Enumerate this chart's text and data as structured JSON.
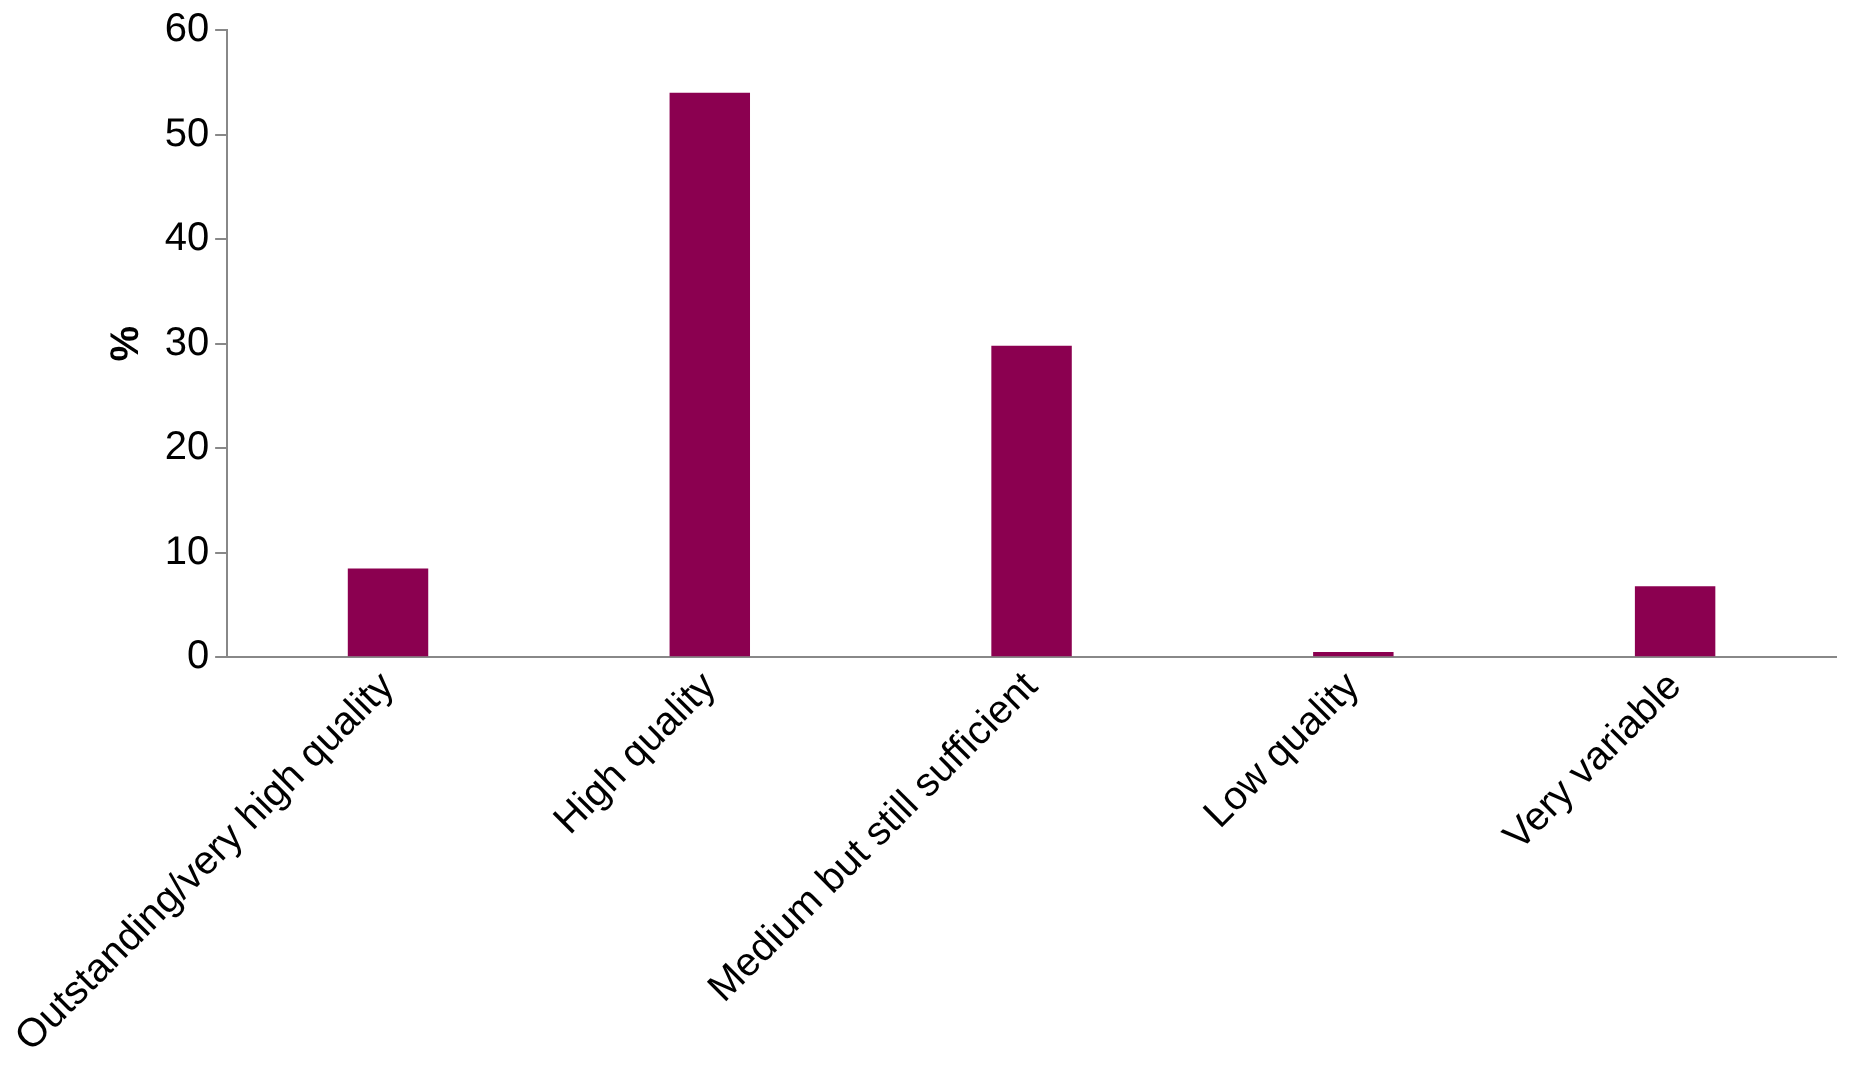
{
  "chart_data": {
    "type": "bar",
    "ylabel": "%",
    "categories": [
      "Outstanding/very high quality",
      "High quality",
      "Medium but still sufficient",
      "Low quality",
      "Very variable"
    ],
    "values": [
      8.5,
      54,
      29.8,
      0.5,
      6.8
    ],
    "color": "#8b0050",
    "ylim": [
      0,
      60
    ],
    "yticks": [
      0,
      10,
      20,
      30,
      40,
      50,
      60
    ],
    "grid": false,
    "legend": false
  }
}
